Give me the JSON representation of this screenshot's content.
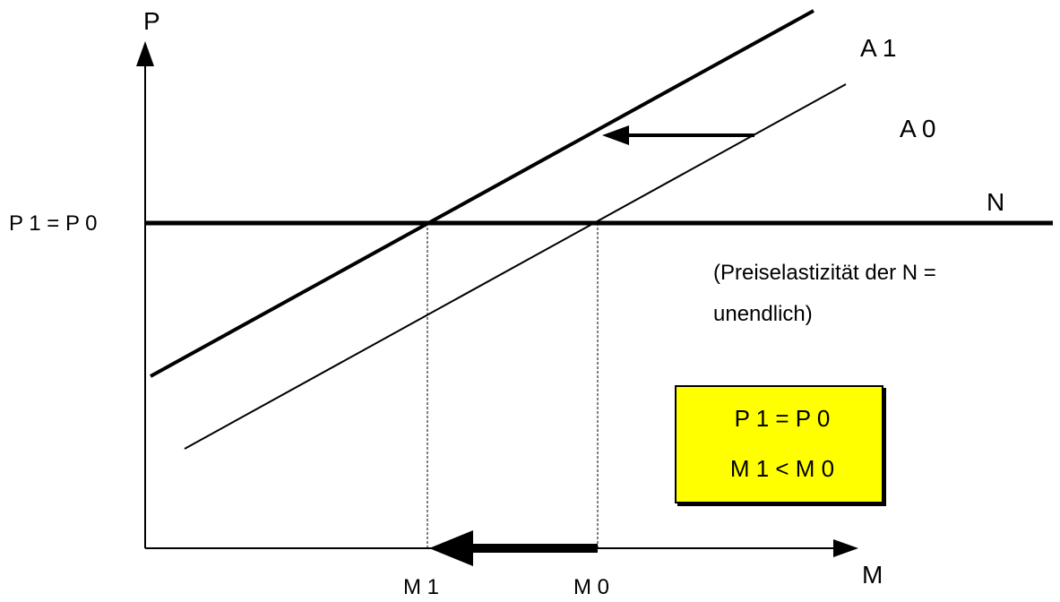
{
  "axes": {
    "y_label": "P",
    "x_label": "M"
  },
  "curves": {
    "supply_new": "A 1",
    "supply_old": "A 0",
    "demand": "N"
  },
  "price_label": "P 1 = P 0",
  "quantity_labels": {
    "m1": "M 1",
    "m0": "M 0"
  },
  "note": {
    "line1": "(Preiselastizität der N =",
    "line2": "unendlich)"
  },
  "result_box": {
    "line1": "P 1 =  P 0",
    "line2": "M 1 <  M 0",
    "fill_color": "#ffff00"
  }
}
